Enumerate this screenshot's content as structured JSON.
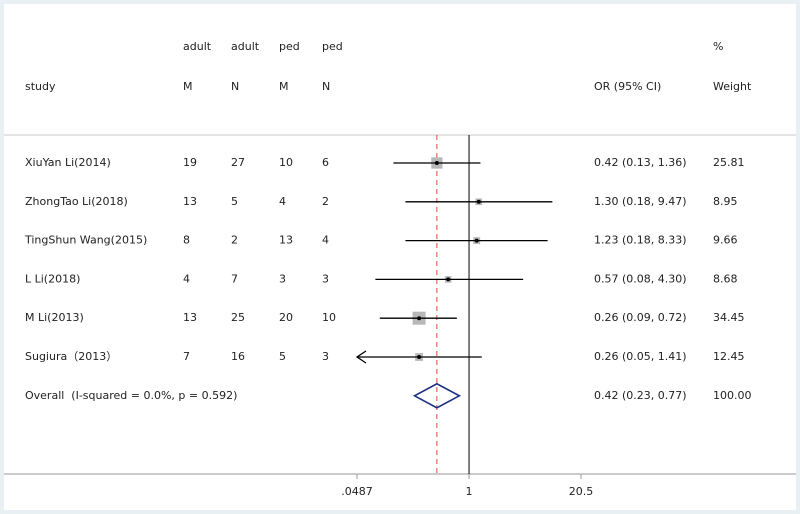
{
  "chart_data": {
    "type": "forest",
    "header_top": [
      "adult",
      "adult",
      "ped",
      "ped",
      "%"
    ],
    "header": [
      "study",
      "M",
      "N",
      "M",
      "N",
      "OR (95% CI)",
      "Weight"
    ],
    "studies": [
      "XiuYan Li(2014)",
      "ZhongTao Li(2018)",
      "TingShun Wang(2015)",
      "L Li(2018)",
      "M Li(2013)",
      "Sugiura（2013）"
    ],
    "adult_m": [
      19,
      13,
      8,
      4,
      13,
      7
    ],
    "adult_n": [
      27,
      5,
      2,
      7,
      25,
      16
    ],
    "ped_m": [
      10,
      4,
      13,
      3,
      20,
      5
    ],
    "ped_n": [
      6,
      2,
      4,
      3,
      10,
      3
    ],
    "or": [
      0.42,
      1.3,
      1.23,
      0.57,
      0.26,
      0.26
    ],
    "ci_low": [
      0.13,
      0.18,
      0.18,
      0.08,
      0.09,
      0.05
    ],
    "ci_high": [
      1.36,
      9.47,
      8.33,
      4.3,
      0.72,
      1.41
    ],
    "or_labels": [
      "0.42 (0.13, 1.36)",
      "1.30 (0.18, 9.47)",
      "1.23 (0.18, 8.33)",
      "0.57 (0.08, 4.30)",
      "0.26 (0.09, 0.72)",
      "0.26 (0.05, 1.41)"
    ],
    "weights": [
      25.81,
      8.95,
      9.66,
      8.68,
      34.45,
      12.45
    ],
    "overall": {
      "label": "Overall  (I-squared = 0.0%, p = 0.592)",
      "or": 0.42,
      "ci_low": 0.23,
      "ci_high": 0.77,
      "or_label": "0.42 (0.23, 0.77)",
      "weight": 100,
      "weight_label": "100.00"
    },
    "xlim": [
      0.0487,
      20.5
    ],
    "xticks": [
      {
        "value": 0.0487,
        "label": ".0487"
      },
      1,
      20.5
    ],
    "log_scale": true
  }
}
